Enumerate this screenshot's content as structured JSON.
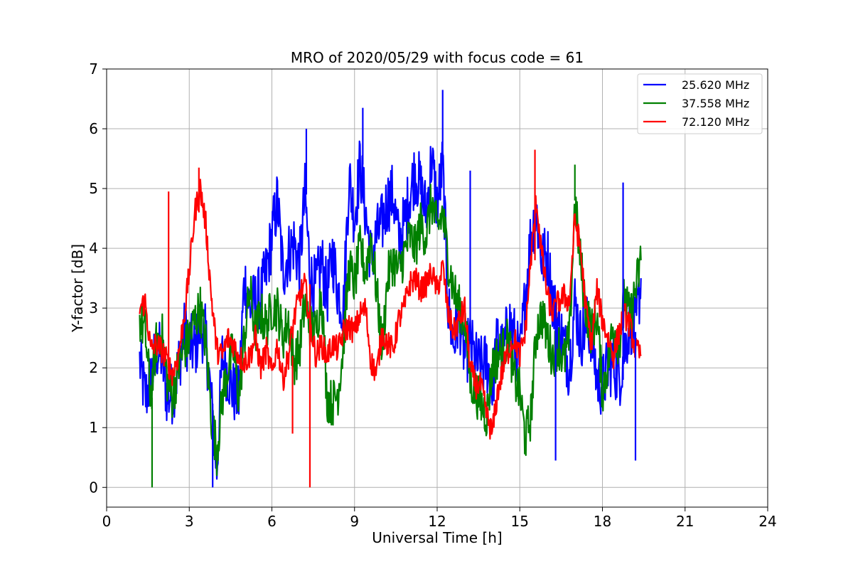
{
  "chart_data": {
    "type": "line",
    "title": "MRO of 2020/05/29 with focus code = 61",
    "xlabel": "Universal Time [h]",
    "ylabel": "Y-factor [dB]",
    "xlim": [
      0,
      24
    ],
    "ylim": [
      -0.33,
      7
    ],
    "xticks": [
      0,
      3,
      6,
      9,
      12,
      15,
      18,
      21,
      24
    ],
    "yticks": [
      0,
      1,
      2,
      3,
      4,
      5,
      6,
      7
    ],
    "grid": true,
    "legend_position": "top-right",
    "series": [
      {
        "name": "25.620 MHz",
        "color": "#0000ff",
        "x": [
          1.2,
          1.4,
          1.6,
          1.8,
          2.0,
          2.2,
          2.4,
          2.6,
          2.8,
          3.0,
          3.2,
          3.4,
          3.6,
          3.8,
          4.0,
          4.2,
          4.4,
          4.6,
          4.8,
          5.0,
          5.2,
          5.4,
          5.6,
          5.8,
          6.0,
          6.2,
          6.4,
          6.6,
          6.8,
          7.0,
          7.2,
          7.4,
          7.6,
          7.8,
          8.0,
          8.2,
          8.4,
          8.6,
          8.8,
          9.0,
          9.2,
          9.4,
          9.6,
          9.8,
          10.0,
          10.2,
          10.4,
          10.6,
          10.8,
          11.0,
          11.2,
          11.4,
          11.6,
          11.8,
          12.0,
          12.2,
          12.4,
          12.6,
          12.8,
          13.0,
          13.2,
          13.4,
          13.6,
          13.8,
          14.0,
          14.2,
          14.4,
          14.6,
          14.8,
          15.0,
          15.2,
          15.4,
          15.6,
          15.8,
          16.0,
          16.2,
          16.4,
          16.6,
          16.8,
          17.0,
          17.2,
          17.4,
          17.6,
          17.8,
          18.0,
          18.2,
          18.4,
          18.6,
          18.8,
          19.0,
          19.2,
          19.4
        ],
        "y": [
          2.1,
          1.5,
          1.8,
          2.3,
          2.2,
          1.5,
          1.6,
          2.0,
          2.6,
          2.4,
          2.3,
          2.7,
          2.5,
          1.4,
          0.3,
          2.2,
          1.9,
          1.6,
          1.5,
          3.5,
          3.0,
          3.1,
          3.2,
          3.6,
          4.2,
          4.8,
          3.6,
          3.9,
          4.1,
          3.7,
          4.9,
          3.5,
          3.3,
          3.8,
          3.2,
          3.9,
          3.3,
          3.0,
          5.2,
          4.5,
          5.4,
          4.6,
          3.8,
          4.2,
          4.4,
          4.8,
          4.9,
          4.1,
          4.4,
          4.9,
          5.3,
          5.0,
          4.6,
          5.5,
          4.7,
          5.4,
          3.0,
          2.4,
          2.9,
          2.2,
          2.4,
          2.1,
          2.0,
          2.1,
          1.7,
          2.5,
          2.2,
          2.8,
          2.5,
          2.1,
          3.2,
          4.2,
          4.6,
          3.8,
          3.9,
          3.1,
          2.7,
          2.4,
          2.0,
          3.1,
          2.5,
          2.7,
          2.6,
          1.8,
          1.7,
          2.0,
          2.1,
          1.8,
          2.3,
          2.8,
          2.6,
          3.5
        ]
      },
      {
        "name": "37.558 MHz",
        "color": "#008000",
        "x": [
          1.2,
          1.4,
          1.6,
          1.8,
          2.0,
          2.2,
          2.4,
          2.6,
          2.8,
          3.0,
          3.2,
          3.4,
          3.6,
          3.8,
          4.0,
          4.2,
          4.4,
          4.6,
          4.8,
          5.0,
          5.2,
          5.4,
          5.6,
          5.8,
          6.0,
          6.2,
          6.4,
          6.6,
          6.8,
          7.0,
          7.2,
          7.4,
          7.6,
          7.8,
          8.0,
          8.2,
          8.4,
          8.6,
          8.8,
          9.0,
          9.2,
          9.4,
          9.6,
          9.8,
          10.0,
          10.2,
          10.4,
          10.6,
          10.8,
          11.0,
          11.2,
          11.4,
          11.6,
          11.8,
          12.0,
          12.2,
          12.4,
          12.6,
          12.8,
          13.0,
          13.2,
          13.4,
          13.6,
          13.8,
          14.0,
          14.2,
          14.4,
          14.6,
          14.8,
          15.0,
          15.2,
          15.4,
          15.6,
          15.8,
          16.0,
          16.2,
          16.4,
          16.6,
          16.8,
          17.0,
          17.2,
          17.4,
          17.6,
          17.8,
          18.0,
          18.2,
          18.4,
          18.6,
          18.8,
          19.0,
          19.2,
          19.4
        ],
        "y": [
          2.8,
          2.6,
          1.5,
          2.4,
          2.6,
          1.8,
          1.5,
          2.0,
          2.3,
          2.5,
          2.8,
          3.0,
          2.4,
          1.2,
          0.6,
          1.5,
          2.0,
          2.3,
          1.5,
          2.5,
          3.3,
          2.6,
          2.9,
          2.7,
          3.0,
          3.0,
          2.5,
          2.8,
          2.1,
          2.3,
          3.1,
          2.7,
          2.6,
          3.3,
          1.5,
          1.4,
          1.6,
          2.4,
          3.7,
          3.4,
          4.0,
          3.6,
          4.2,
          3.3,
          2.3,
          3.5,
          3.8,
          3.6,
          3.9,
          4.2,
          4.0,
          4.4,
          4.2,
          4.8,
          4.3,
          4.6,
          3.8,
          3.3,
          3.0,
          2.8,
          1.8,
          1.6,
          1.4,
          1.2,
          2.0,
          2.2,
          2.3,
          2.5,
          1.8,
          1.6,
          0.8,
          1.2,
          2.6,
          2.9,
          2.5,
          2.2,
          2.4,
          2.1,
          2.5,
          4.8,
          3.8,
          3.0,
          2.6,
          2.9,
          1.6,
          2.1,
          2.7,
          2.4,
          3.2,
          2.8,
          3.3,
          3.8
        ]
      },
      {
        "name": "72.120 MHz",
        "color": "#ff0000",
        "x": [
          1.2,
          1.4,
          1.6,
          1.8,
          2.0,
          2.2,
          2.4,
          2.6,
          2.8,
          3.0,
          3.2,
          3.4,
          3.6,
          3.8,
          4.0,
          4.2,
          4.4,
          4.6,
          4.8,
          5.0,
          5.2,
          5.4,
          5.6,
          5.8,
          6.0,
          6.2,
          6.4,
          6.6,
          6.8,
          7.0,
          7.2,
          7.4,
          7.6,
          7.8,
          8.0,
          8.2,
          8.4,
          8.6,
          8.8,
          9.0,
          9.2,
          9.4,
          9.6,
          9.8,
          10.0,
          10.2,
          10.4,
          10.6,
          10.8,
          11.0,
          11.2,
          11.4,
          11.6,
          11.8,
          12.0,
          12.2,
          12.4,
          12.6,
          12.8,
          13.0,
          13.2,
          13.4,
          13.6,
          13.8,
          14.0,
          14.2,
          14.4,
          14.6,
          14.8,
          15.0,
          15.2,
          15.4,
          15.6,
          15.8,
          16.0,
          16.2,
          16.4,
          16.6,
          16.8,
          17.0,
          17.2,
          17.4,
          17.6,
          17.8,
          18.0,
          18.2,
          18.4,
          18.6,
          18.8,
          19.0,
          19.2,
          19.4
        ],
        "y": [
          3.0,
          3.1,
          2.3,
          2.4,
          2.3,
          2.1,
          1.9,
          2.2,
          2.8,
          3.6,
          4.6,
          5.0,
          4.4,
          3.2,
          2.3,
          2.2,
          2.5,
          2.4,
          2.2,
          2.1,
          2.2,
          2.5,
          2.0,
          2.3,
          1.9,
          2.4,
          1.8,
          2.2,
          2.8,
          3.2,
          3.4,
          2.7,
          2.2,
          2.4,
          2.2,
          2.4,
          2.3,
          2.6,
          2.7,
          2.6,
          2.9,
          3.0,
          2.1,
          1.9,
          2.6,
          2.4,
          2.3,
          2.8,
          3.0,
          3.4,
          3.5,
          3.3,
          3.4,
          3.6,
          3.3,
          3.7,
          2.9,
          2.6,
          2.8,
          3.0,
          2.0,
          1.7,
          1.7,
          1.2,
          0.9,
          1.6,
          2.0,
          2.3,
          2.5,
          2.2,
          2.6,
          3.8,
          4.8,
          3.9,
          3.2,
          2.9,
          3.1,
          3.2,
          3.1,
          4.5,
          4.0,
          3.0,
          2.4,
          3.3,
          2.8,
          2.5,
          2.2,
          2.6,
          2.9,
          2.7,
          2.3,
          2.2
        ]
      }
    ],
    "spikes": [
      {
        "series": 2,
        "x": 2.25,
        "y": 4.95
      },
      {
        "series": 2,
        "x": 7.38,
        "y": 0.0
      },
      {
        "series": 0,
        "x": 7.25,
        "y": 6.0
      },
      {
        "series": 0,
        "x": 9.3,
        "y": 6.35
      },
      {
        "series": 0,
        "x": 12.2,
        "y": 6.65
      },
      {
        "series": 1,
        "x": 1.65,
        "y": 0.0
      },
      {
        "series": 0,
        "x": 3.85,
        "y": 0.0
      },
      {
        "series": 2,
        "x": 6.75,
        "y": 0.9
      },
      {
        "series": 0,
        "x": 16.3,
        "y": 0.45
      },
      {
        "series": 0,
        "x": 19.2,
        "y": 0.45
      },
      {
        "series": 0,
        "x": 18.75,
        "y": 5.1
      },
      {
        "series": 1,
        "x": 17.0,
        "y": 5.4
      },
      {
        "series": 2,
        "x": 15.55,
        "y": 5.65
      },
      {
        "series": 2,
        "x": 3.35,
        "y": 5.35
      },
      {
        "series": 0,
        "x": 13.2,
        "y": 5.3
      }
    ]
  }
}
